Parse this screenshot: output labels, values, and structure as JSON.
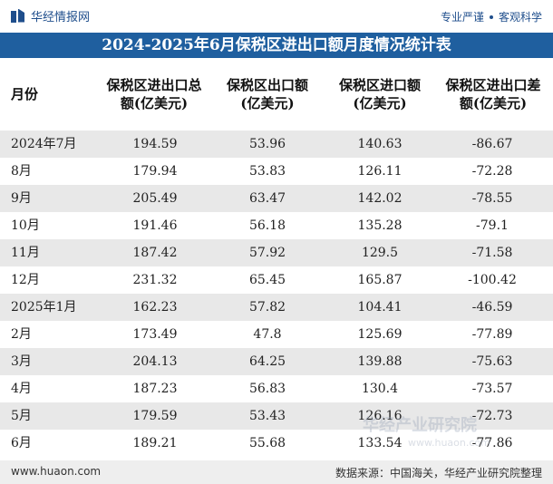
{
  "brand": {
    "name": "华经情报网"
  },
  "slogan": {
    "left": "专业严谨",
    "right": "客观科学"
  },
  "title": "2024-2025年6月保税区进出口额月度情况统计表",
  "table": {
    "headers": [
      "月份",
      "保税区进出口总额(亿美元)",
      "保税区出口额(亿美元)",
      "保税区进口额(亿美元)",
      "保税区进出口差额(亿美元)"
    ],
    "header_lines": [
      [
        "月份"
      ],
      [
        "保税区进出口总",
        "额(亿美元)"
      ],
      [
        "保税区出口额",
        "(亿美元)"
      ],
      [
        "保税区进口额",
        "(亿美元)"
      ],
      [
        "保税区进出口差",
        "额(亿美元)"
      ]
    ],
    "rows": [
      [
        "2024年7月",
        "194.59",
        "53.96",
        "140.63",
        "-86.67"
      ],
      [
        "8月",
        "179.94",
        "53.83",
        "126.11",
        "-72.28"
      ],
      [
        "9月",
        "205.49",
        "63.47",
        "142.02",
        "-78.55"
      ],
      [
        "10月",
        "191.46",
        "56.18",
        "135.28",
        "-79.1"
      ],
      [
        "11月",
        "187.42",
        "57.92",
        "129.5",
        "-71.58"
      ],
      [
        "12月",
        "231.32",
        "65.45",
        "165.87",
        "-100.42"
      ],
      [
        "2025年1月",
        "162.23",
        "57.82",
        "104.41",
        "-46.59"
      ],
      [
        "2月",
        "173.49",
        "47.8",
        "125.69",
        "-77.89"
      ],
      [
        "3月",
        "204.13",
        "64.25",
        "139.88",
        "-75.63"
      ],
      [
        "4月",
        "187.23",
        "56.83",
        "130.4",
        "-73.57"
      ],
      [
        "5月",
        "179.59",
        "53.43",
        "126.16",
        "-72.73"
      ],
      [
        "6月",
        "189.21",
        "55.68",
        "133.54",
        "-77.86"
      ]
    ]
  },
  "watermark": {
    "main": "华经产业研究院",
    "sub": "www.huaon.com"
  },
  "footer": {
    "website": "www.huaon.com",
    "source": "数据来源：中国海关，华经产业研究院整理"
  }
}
